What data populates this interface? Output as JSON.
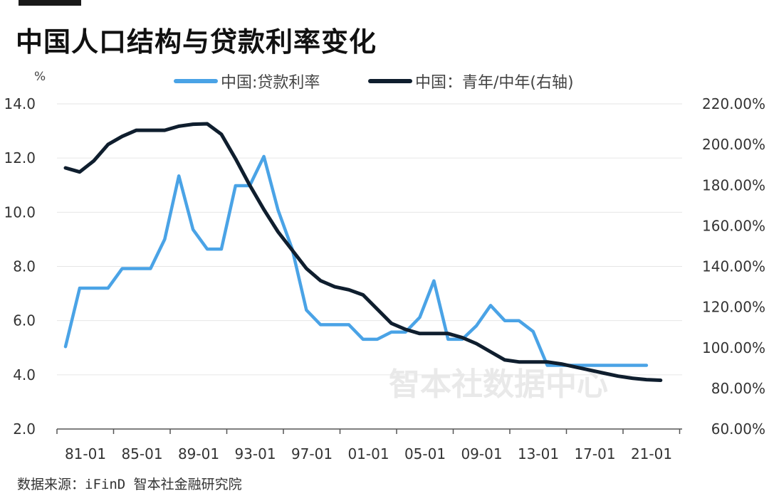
{
  "header": {
    "title": "中国人口结构与贷款利率变化"
  },
  "source": "数据来源：iFinD 智本社金融研究院",
  "watermark": "智本社数据中心",
  "colors": {
    "loan_rate": "#4aa3e6",
    "ratio": "#0f1e2e",
    "axis": "#555555",
    "grid": "#e6e6e6"
  },
  "chart_data": {
    "type": "line",
    "unit_left": "%",
    "x_tick_labels": [
      "81-01",
      "85-01",
      "89-01",
      "93-01",
      "97-01",
      "01-01",
      "05-01",
      "09-01",
      "13-01",
      "17-01",
      "21-01"
    ],
    "x_range": [
      1981,
      2024
    ],
    "y_left": {
      "ticks": [
        "2.0",
        "4.0",
        "6.0",
        "8.0",
        "10.0",
        "12.0",
        "14.0"
      ],
      "range": [
        2,
        14
      ]
    },
    "y_right": {
      "ticks": [
        "60.00%",
        "80.00%",
        "100.00%",
        "120.00%",
        "140.00%",
        "160.00%",
        "180.00%",
        "200.00%",
        "220.00%"
      ],
      "range": [
        60,
        220
      ]
    },
    "grid": "horizontal",
    "legend_position": "top",
    "series": [
      {
        "name": "中国:贷款利率",
        "axis": "left",
        "color": "#4aa3e6",
        "points": [
          [
            1981,
            5.04
          ],
          [
            1982,
            7.2
          ],
          [
            1983,
            7.2
          ],
          [
            1984,
            7.2
          ],
          [
            1985,
            7.92
          ],
          [
            1986,
            7.92
          ],
          [
            1987,
            7.92
          ],
          [
            1988,
            9.0
          ],
          [
            1989,
            11.34
          ],
          [
            1990,
            9.36
          ],
          [
            1991,
            8.64
          ],
          [
            1992,
            8.64
          ],
          [
            1993,
            10.98
          ],
          [
            1994,
            10.98
          ],
          [
            1995,
            12.06
          ],
          [
            1996,
            10.08
          ],
          [
            1997,
            8.64
          ],
          [
            1998,
            6.39
          ],
          [
            1999,
            5.85
          ],
          [
            2000,
            5.85
          ],
          [
            2001,
            5.85
          ],
          [
            2002,
            5.31
          ],
          [
            2003,
            5.31
          ],
          [
            2004,
            5.58
          ],
          [
            2005,
            5.58
          ],
          [
            2006,
            6.12
          ],
          [
            2007,
            7.47
          ],
          [
            2008,
            5.31
          ],
          [
            2009,
            5.31
          ],
          [
            2010,
            5.81
          ],
          [
            2011,
            6.56
          ],
          [
            2012,
            6.0
          ],
          [
            2013,
            6.0
          ],
          [
            2014,
            5.6
          ],
          [
            2015,
            4.35
          ],
          [
            2016,
            4.35
          ],
          [
            2017,
            4.35
          ],
          [
            2018,
            4.35
          ],
          [
            2019,
            4.35
          ],
          [
            2020,
            4.35
          ],
          [
            2021,
            4.35
          ],
          [
            2022,
            4.35
          ]
        ]
      },
      {
        "name": "中国：青年/中年(右轴)",
        "axis": "right",
        "color": "#0f1e2e",
        "points": [
          [
            1981,
            188.5
          ],
          [
            1982,
            186.5
          ],
          [
            1983,
            192
          ],
          [
            1984,
            200
          ],
          [
            1985,
            204
          ],
          [
            1986,
            207
          ],
          [
            1987,
            207
          ],
          [
            1988,
            207
          ],
          [
            1989,
            209
          ],
          [
            1990,
            210
          ],
          [
            1991,
            210.2
          ],
          [
            1992,
            205
          ],
          [
            1993,
            193
          ],
          [
            1994,
            180
          ],
          [
            1995,
            168
          ],
          [
            1996,
            157
          ],
          [
            1997,
            148
          ],
          [
            1998,
            139
          ],
          [
            1999,
            133
          ],
          [
            2000,
            130
          ],
          [
            2001,
            128.5
          ],
          [
            2002,
            126
          ],
          [
            2003,
            119
          ],
          [
            2004,
            112
          ],
          [
            2005,
            109
          ],
          [
            2006,
            107
          ],
          [
            2007,
            107
          ],
          [
            2008,
            107
          ],
          [
            2009,
            105
          ],
          [
            2010,
            102
          ],
          [
            2011,
            98
          ],
          [
            2012,
            94
          ],
          [
            2013,
            93
          ],
          [
            2014,
            93
          ],
          [
            2015,
            93
          ],
          [
            2016,
            92
          ],
          [
            2017,
            90.5
          ],
          [
            2018,
            89
          ],
          [
            2019,
            87.5
          ],
          [
            2020,
            86
          ],
          [
            2021,
            85
          ],
          [
            2022,
            84.3
          ],
          [
            2023,
            84
          ]
        ]
      }
    ]
  }
}
